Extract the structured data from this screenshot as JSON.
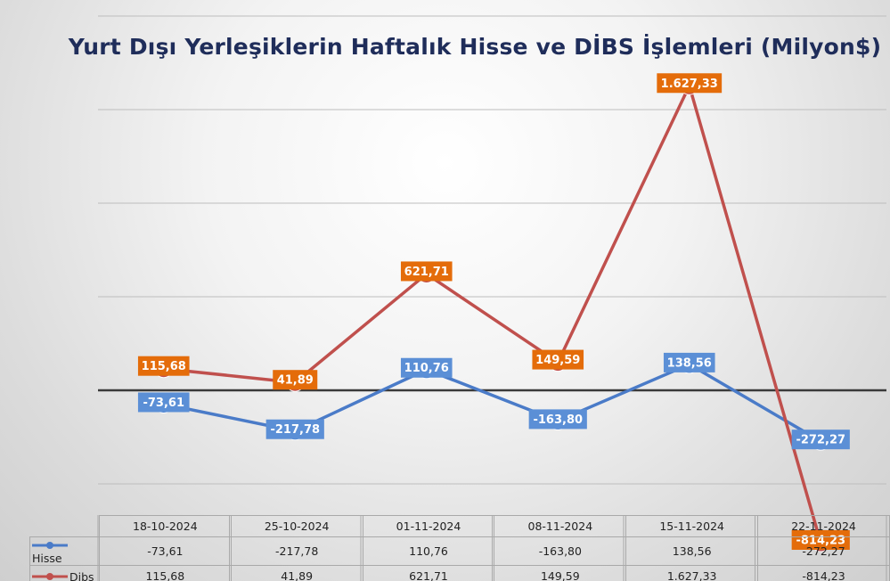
{
  "chart_data": {
    "type": "line",
    "title": "Yurt Dışı Yerleşiklerin Haftalık Hisse ve DİBS İşlemleri (Milyon$)",
    "categories": [
      "18-10-2024",
      "25-10-2024",
      "01-11-2024",
      "08-11-2024",
      "15-11-2024",
      "22-11-2024"
    ],
    "series": [
      {
        "name": "Hisse",
        "values": [
          -73.61,
          -217.78,
          110.76,
          -163.8,
          138.56,
          -272.27
        ],
        "labels": [
          "-73,61",
          "-217,78",
          "110,76",
          "-163,80",
          "138,56",
          "-272,27"
        ],
        "color": "#4a7bc8",
        "label_color": "#5b8fd6"
      },
      {
        "name": "Dibs",
        "values": [
          115.68,
          41.89,
          621.71,
          149.59,
          1627.33,
          -814.23
        ],
        "labels": [
          "115,68",
          "41,89",
          "621,71",
          "149,59",
          "1.627,33",
          "-814,23"
        ],
        "color": "#c0504d",
        "label_color": "#e46c0a"
      }
    ],
    "ylim": [
      -1000,
      2000
    ],
    "grid": true,
    "legend": "data-table"
  }
}
